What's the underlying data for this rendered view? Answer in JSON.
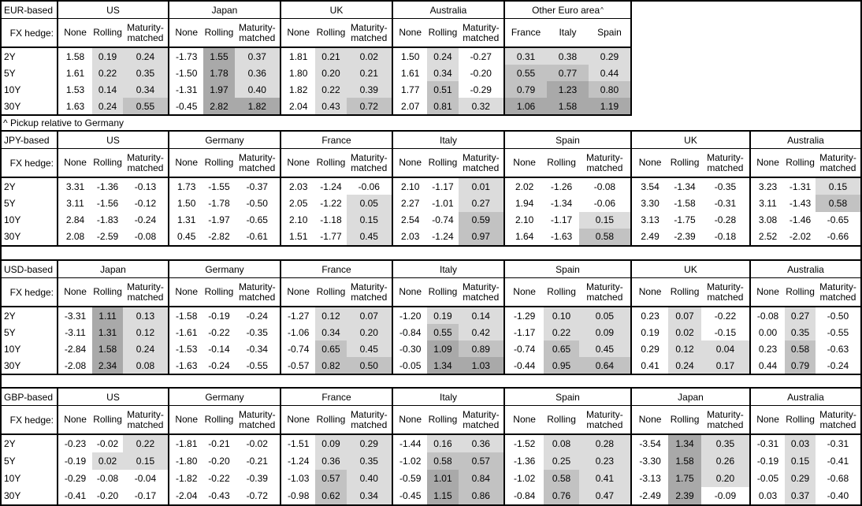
{
  "footnote": "^ Pickup relative to Germany",
  "fx_hedge_label": "FX hedge:",
  "row_labels": [
    "2Y",
    "5Y",
    "10Y",
    "30Y"
  ],
  "hedge_subheaders": [
    "None",
    "Rolling",
    "Maturity-matched"
  ],
  "shading_colors": {
    "none": "#ffffff",
    "light": "#dcdcdc",
    "medium": "#c2c2c2",
    "dark": "#a9a9a9"
  },
  "shading_rule": "value<0:none, 0-0.5:light, 0.5-1:medium, >=1:dark; None-columns never shaded",
  "tables": [
    {
      "base_label": "EUR-based",
      "groups": [
        {
          "name": "US",
          "type": "hedge",
          "rows": [
            [
              "1.58",
              "0.19",
              "0.24"
            ],
            [
              "1.61",
              "0.22",
              "0.35"
            ],
            [
              "1.53",
              "0.14",
              "0.34"
            ],
            [
              "1.63",
              "0.24",
              "0.55"
            ]
          ]
        },
        {
          "name": "Japan",
          "type": "hedge",
          "rows": [
            [
              "-1.73",
              "1.55",
              "0.37"
            ],
            [
              "-1.50",
              "1.78",
              "0.36"
            ],
            [
              "-1.31",
              "1.97",
              "0.40"
            ],
            [
              "-0.45",
              "2.82",
              "1.82"
            ]
          ]
        },
        {
          "name": "UK",
          "type": "hedge",
          "rows": [
            [
              "1.81",
              "0.21",
              "0.02"
            ],
            [
              "1.80",
              "0.20",
              "0.21"
            ],
            [
              "1.82",
              "0.22",
              "0.39"
            ],
            [
              "2.04",
              "0.43",
              "0.72"
            ]
          ]
        },
        {
          "name": "Australia",
          "type": "hedge",
          "rows": [
            [
              "1.50",
              "0.24",
              "-0.27"
            ],
            [
              "1.61",
              "0.34",
              "-0.20"
            ],
            [
              "1.77",
              "0.51",
              "-0.29"
            ],
            [
              "2.07",
              "0.81",
              "0.32"
            ]
          ]
        },
        {
          "name": "Other Euro area",
          "sup": "^",
          "type": "country",
          "subheaders": [
            "France",
            "Italy",
            "Spain"
          ],
          "rows": [
            [
              "0.31",
              "0.38",
              "0.29"
            ],
            [
              "0.55",
              "0.77",
              "0.44"
            ],
            [
              "0.79",
              "1.23",
              "0.80"
            ],
            [
              "1.06",
              "1.58",
              "1.19"
            ]
          ]
        }
      ]
    },
    {
      "base_label": "JPY-based",
      "groups": [
        {
          "name": "US",
          "type": "hedge",
          "rows": [
            [
              "3.31",
              "-1.36",
              "-0.13"
            ],
            [
              "3.11",
              "-1.56",
              "-0.12"
            ],
            [
              "2.84",
              "-1.83",
              "-0.24"
            ],
            [
              "2.08",
              "-2.59",
              "-0.08"
            ]
          ]
        },
        {
          "name": "Germany",
          "type": "hedge",
          "rows": [
            [
              "1.73",
              "-1.55",
              "-0.37"
            ],
            [
              "1.50",
              "-1.78",
              "-0.50"
            ],
            [
              "1.31",
              "-1.97",
              "-0.65"
            ],
            [
              "0.45",
              "-2.82",
              "-0.61"
            ]
          ]
        },
        {
          "name": "France",
          "type": "hedge",
          "rows": [
            [
              "2.03",
              "-1.24",
              "-0.06"
            ],
            [
              "2.05",
              "-1.22",
              "0.05"
            ],
            [
              "2.10",
              "-1.18",
              "0.15"
            ],
            [
              "1.51",
              "-1.77",
              "0.45"
            ]
          ]
        },
        {
          "name": "Italy",
          "type": "hedge",
          "rows": [
            [
              "2.10",
              "-1.17",
              "0.01"
            ],
            [
              "2.27",
              "-1.01",
              "0.27"
            ],
            [
              "2.54",
              "-0.74",
              "0.59"
            ],
            [
              "2.03",
              "-1.24",
              "0.97"
            ]
          ]
        },
        {
          "name": "Spain",
          "type": "hedge",
          "rows": [
            [
              "2.02",
              "-1.26",
              "-0.08"
            ],
            [
              "1.94",
              "-1.34",
              "-0.06"
            ],
            [
              "2.10",
              "-1.17",
              "0.15"
            ],
            [
              "1.64",
              "-1.63",
              "0.58"
            ]
          ]
        },
        {
          "name": "UK",
          "type": "hedge",
          "rows": [
            [
              "3.54",
              "-1.34",
              "-0.35"
            ],
            [
              "3.30",
              "-1.58",
              "-0.31"
            ],
            [
              "3.13",
              "-1.75",
              "-0.28"
            ],
            [
              "2.49",
              "-2.39",
              "-0.18"
            ]
          ]
        },
        {
          "name": "Australia",
          "type": "hedge",
          "rows": [
            [
              "3.23",
              "-1.31",
              "0.15"
            ],
            [
              "3.11",
              "-1.43",
              "0.58"
            ],
            [
              "3.08",
              "-1.46",
              "-0.65"
            ],
            [
              "2.52",
              "-2.02",
              "-0.66"
            ]
          ]
        }
      ]
    },
    {
      "base_label": "USD-based",
      "groups": [
        {
          "name": "Japan",
          "type": "hedge",
          "rows": [
            [
              "-3.31",
              "1.11",
              "0.13"
            ],
            [
              "-3.11",
              "1.31",
              "0.12"
            ],
            [
              "-2.84",
              "1.58",
              "0.24"
            ],
            [
              "-2.08",
              "2.34",
              "0.08"
            ]
          ]
        },
        {
          "name": "Germany",
          "type": "hedge",
          "rows": [
            [
              "-1.58",
              "-0.19",
              "-0.24"
            ],
            [
              "-1.61",
              "-0.22",
              "-0.35"
            ],
            [
              "-1.53",
              "-0.14",
              "-0.34"
            ],
            [
              "-1.63",
              "-0.24",
              "-0.55"
            ]
          ]
        },
        {
          "name": "France",
          "type": "hedge",
          "rows": [
            [
              "-1.27",
              "0.12",
              "0.07"
            ],
            [
              "-1.06",
              "0.34",
              "0.20"
            ],
            [
              "-0.74",
              "0.65",
              "0.45"
            ],
            [
              "-0.57",
              "0.82",
              "0.50"
            ]
          ]
        },
        {
          "name": "Italy",
          "type": "hedge",
          "rows": [
            [
              "-1.20",
              "0.19",
              "0.14"
            ],
            [
              "-0.84",
              "0.55",
              "0.42"
            ],
            [
              "-0.30",
              "1.09",
              "0.89"
            ],
            [
              "-0.05",
              "1.34",
              "1.03"
            ]
          ]
        },
        {
          "name": "Spain",
          "type": "hedge",
          "rows": [
            [
              "-1.29",
              "0.10",
              "0.05"
            ],
            [
              "-1.17",
              "0.22",
              "0.09"
            ],
            [
              "-0.74",
              "0.65",
              "0.45"
            ],
            [
              "-0.44",
              "0.95",
              "0.64"
            ]
          ]
        },
        {
          "name": "UK",
          "type": "hedge",
          "rows": [
            [
              "0.23",
              "0.07",
              "-0.22"
            ],
            [
              "0.19",
              "0.02",
              "-0.15"
            ],
            [
              "0.29",
              "0.12",
              "0.04"
            ],
            [
              "0.41",
              "0.24",
              "0.17"
            ]
          ]
        },
        {
          "name": "Australia",
          "type": "hedge",
          "rows": [
            [
              "-0.08",
              "0.27",
              "-0.50"
            ],
            [
              "0.00",
              "0.35",
              "-0.55"
            ],
            [
              "0.23",
              "0.58",
              "-0.63"
            ],
            [
              "0.44",
              "0.79",
              "-0.24"
            ]
          ]
        }
      ]
    },
    {
      "base_label": "GBP-based",
      "groups": [
        {
          "name": "US",
          "type": "hedge",
          "rows": [
            [
              "-0.23",
              "-0.02",
              "0.22"
            ],
            [
              "-0.19",
              "0.02",
              "0.15"
            ],
            [
              "-0.29",
              "-0.08",
              "-0.04"
            ],
            [
              "-0.41",
              "-0.20",
              "-0.17"
            ]
          ]
        },
        {
          "name": "Germany",
          "type": "hedge",
          "rows": [
            [
              "-1.81",
              "-0.21",
              "-0.02"
            ],
            [
              "-1.80",
              "-0.20",
              "-0.21"
            ],
            [
              "-1.82",
              "-0.22",
              "-0.39"
            ],
            [
              "-2.04",
              "-0.43",
              "-0.72"
            ]
          ]
        },
        {
          "name": "France",
          "type": "hedge",
          "rows": [
            [
              "-1.51",
              "0.09",
              "0.29"
            ],
            [
              "-1.24",
              "0.36",
              "0.35"
            ],
            [
              "-1.03",
              "0.57",
              "0.40"
            ],
            [
              "-0.98",
              "0.62",
              "0.34"
            ]
          ]
        },
        {
          "name": "Italy",
          "type": "hedge",
          "rows": [
            [
              "-1.44",
              "0.16",
              "0.36"
            ],
            [
              "-1.02",
              "0.58",
              "0.57"
            ],
            [
              "-0.59",
              "1.01",
              "0.84"
            ],
            [
              "-0.45",
              "1.15",
              "0.86"
            ]
          ]
        },
        {
          "name": "Spain",
          "type": "hedge",
          "rows": [
            [
              "-1.52",
              "0.08",
              "0.28"
            ],
            [
              "-1.36",
              "0.25",
              "0.23"
            ],
            [
              "-1.02",
              "0.58",
              "0.41"
            ],
            [
              "-0.84",
              "0.76",
              "0.47"
            ]
          ]
        },
        {
          "name": "Japan",
          "type": "hedge",
          "rows": [
            [
              "-3.54",
              "1.34",
              "0.35"
            ],
            [
              "-3.30",
              "1.58",
              "0.26"
            ],
            [
              "-3.13",
              "1.75",
              "0.20"
            ],
            [
              "-2.49",
              "2.39",
              "-0.09"
            ]
          ]
        },
        {
          "name": "Australia",
          "type": "hedge",
          "rows": [
            [
              "-0.31",
              "0.03",
              "-0.31"
            ],
            [
              "-0.19",
              "0.15",
              "-0.41"
            ],
            [
              "-0.05",
              "0.29",
              "-0.68"
            ],
            [
              "0.03",
              "0.37",
              "-0.40"
            ]
          ]
        }
      ]
    }
  ]
}
